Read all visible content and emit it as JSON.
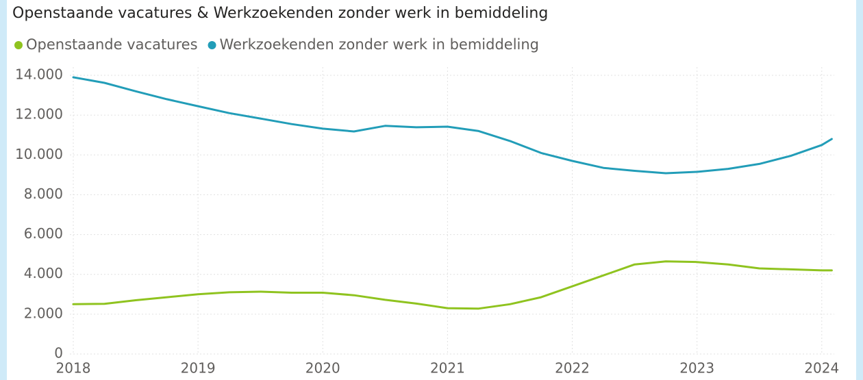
{
  "chart_data": {
    "type": "line",
    "title": "Openstaande vacatures & Werkzoekenden zonder werk in bemiddeling",
    "x": [
      2018,
      2018.25,
      2018.5,
      2018.75,
      2019,
      2019.25,
      2019.5,
      2019.75,
      2020,
      2020.25,
      2020.5,
      2020.75,
      2021,
      2021.25,
      2021.5,
      2021.75,
      2022,
      2022.25,
      2022.5,
      2022.75,
      2023,
      2023.25,
      2023.5,
      2023.75,
      2024,
      2024.08
    ],
    "series": [
      {
        "name": "Openstaande vacatures",
        "color": "#8fc31f",
        "values": [
          2500,
          2520,
          2700,
          2850,
          3000,
          3100,
          3130,
          3080,
          3080,
          2950,
          2720,
          2530,
          2300,
          2280,
          2500,
          2850,
          3400,
          3950,
          4500,
          4650,
          4620,
          4500,
          4300,
          4250,
          4200,
          4200
        ]
      },
      {
        "name": "Werkzoekenden zonder werk in bemiddeling",
        "color": "#229db8",
        "values": [
          13900,
          13620,
          13200,
          12800,
          12450,
          12100,
          11830,
          11550,
          11320,
          11180,
          11460,
          11390,
          11420,
          11200,
          10700,
          10100,
          9700,
          9350,
          9200,
          9080,
          9150,
          9300,
          9550,
          9950,
          10500,
          10800
        ]
      }
    ],
    "xlim": [
      2018,
      2024.1
    ],
    "xticks": [
      2018,
      2019,
      2020,
      2021,
      2022,
      2023,
      2024
    ],
    "ylim": [
      0,
      14000
    ],
    "yticks": [
      0,
      {
        "value": 2000,
        "label": "2.000"
      },
      {
        "value": 4000,
        "label": "4.000"
      },
      {
        "value": 6000,
        "label": "6.000"
      },
      {
        "value": 8000,
        "label": "8.000"
      },
      {
        "value": 10000,
        "label": "10.000"
      },
      {
        "value": 12000,
        "label": "12.000"
      },
      {
        "value": 14000,
        "label": "14.000"
      }
    ],
    "grid": true
  }
}
